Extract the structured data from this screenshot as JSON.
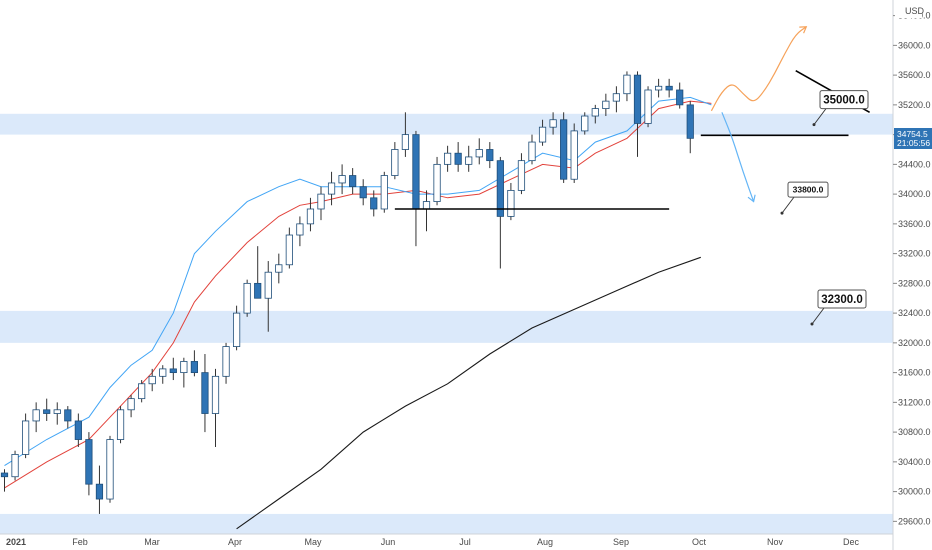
{
  "chart_data": {
    "type": "candlestick",
    "currency": "USD",
    "x_ticks": [
      "2021",
      "Feb",
      "Mar",
      "Apr",
      "May",
      "Jun",
      "Jul",
      "Aug",
      "Sep",
      "Oct",
      "Nov",
      "Dec"
    ],
    "y_ticks": [
      29600,
      30000,
      30400,
      30800,
      31200,
      31600,
      32000,
      32400,
      32800,
      33200,
      33600,
      34000,
      34400,
      34800,
      35200,
      35600,
      36000,
      36400
    ],
    "ylim": [
      29430,
      36610
    ],
    "price_label": {
      "value": "34754.5",
      "countdown": "21:05:56"
    },
    "zones": [
      {
        "from": 34800,
        "to": 35080
      },
      {
        "from": 32000,
        "to": 32430
      },
      {
        "from": 29430,
        "to": 29700
      }
    ],
    "levels": [
      {
        "name": "support-33800",
        "price": 33800,
        "from_week": 37,
        "to_week": 63
      },
      {
        "name": "support-34800",
        "price": 34790,
        "from_week": 66,
        "to_week": 80
      }
    ],
    "trendline": {
      "from": {
        "week": 75,
        "price": 35660
      },
      "to": {
        "week": 82,
        "price": 35100
      }
    },
    "callouts": [
      {
        "name": "callout-35000",
        "label": "35000.0",
        "price": 35270,
        "size": "large"
      },
      {
        "name": "callout-33800",
        "label": "33800.0",
        "price": 34060,
        "size": "small"
      },
      {
        "name": "callout-32300",
        "label": "32300.0",
        "price": 32590,
        "size": "large"
      }
    ],
    "forecast_up": [
      [
        67,
        35120
      ],
      [
        68,
        35380
      ],
      [
        69,
        35500
      ],
      [
        70,
        35350
      ],
      [
        71,
        35220
      ],
      [
        72,
        35380
      ],
      [
        73,
        35620
      ],
      [
        74,
        35900
      ],
      [
        75,
        36150
      ],
      [
        76,
        36250
      ]
    ],
    "forecast_down": [
      [
        68,
        35100
      ],
      [
        69,
        34750
      ],
      [
        70,
        34300
      ],
      [
        71,
        33900
      ]
    ],
    "ema_fast": [
      [
        0,
        30350
      ],
      [
        4,
        30700
      ],
      [
        8,
        31000
      ],
      [
        10,
        31400
      ],
      [
        12,
        31700
      ],
      [
        14,
        31900
      ],
      [
        16,
        32400
      ],
      [
        18,
        33200
      ],
      [
        20,
        33500
      ],
      [
        23,
        33900
      ],
      [
        26,
        34100
      ],
      [
        28,
        34200
      ],
      [
        30,
        34100
      ],
      [
        33,
        34100
      ],
      [
        36,
        34100
      ],
      [
        39,
        34000
      ],
      [
        42,
        34000
      ],
      [
        45,
        34050
      ],
      [
        48,
        34300
      ],
      [
        51,
        34550
      ],
      [
        54,
        34450
      ],
      [
        56,
        34700
      ],
      [
        59,
        34850
      ],
      [
        62,
        35250
      ],
      [
        65,
        35300
      ],
      [
        67,
        35200
      ]
    ],
    "ema_slow": [
      [
        0,
        30050
      ],
      [
        4,
        30400
      ],
      [
        8,
        30700
      ],
      [
        10,
        31000
      ],
      [
        12,
        31300
      ],
      [
        14,
        31600
      ],
      [
        16,
        32000
      ],
      [
        18,
        32550
      ],
      [
        20,
        32900
      ],
      [
        23,
        33350
      ],
      [
        26,
        33700
      ],
      [
        28,
        33850
      ],
      [
        30,
        33900
      ],
      [
        33,
        34000
      ],
      [
        36,
        34000
      ],
      [
        39,
        34050
      ],
      [
        42,
        33950
      ],
      [
        45,
        34000
      ],
      [
        48,
        34200
      ],
      [
        51,
        34400
      ],
      [
        54,
        34350
      ],
      [
        56,
        34550
      ],
      [
        59,
        34750
      ],
      [
        62,
        35150
      ],
      [
        65,
        35250
      ],
      [
        67,
        35220
      ]
    ],
    "sma_long": [
      [
        22,
        29500
      ],
      [
        26,
        29900
      ],
      [
        30,
        30300
      ],
      [
        34,
        30800
      ],
      [
        38,
        31150
      ],
      [
        42,
        31450
      ],
      [
        46,
        31850
      ],
      [
        50,
        32200
      ],
      [
        54,
        32450
      ],
      [
        58,
        32700
      ],
      [
        62,
        32950
      ],
      [
        66,
        33150
      ]
    ],
    "candles": [
      [
        30250,
        30300,
        30000,
        30200
      ],
      [
        30200,
        30550,
        30150,
        30500
      ],
      [
        30500,
        31050,
        30450,
        30950
      ],
      [
        30950,
        31200,
        30800,
        31100
      ],
      [
        31100,
        31250,
        30950,
        31050
      ],
      [
        31050,
        31200,
        30900,
        31100
      ],
      [
        31100,
        31150,
        30850,
        30950
      ],
      [
        30950,
        31050,
        30600,
        30700
      ],
      [
        30700,
        30800,
        29950,
        30100
      ],
      [
        30100,
        30350,
        29700,
        29900
      ],
      [
        29900,
        30750,
        29850,
        30700
      ],
      [
        30700,
        31150,
        30650,
        31100
      ],
      [
        31100,
        31300,
        31000,
        31250
      ],
      [
        31250,
        31500,
        31200,
        31450
      ],
      [
        31450,
        31650,
        31350,
        31550
      ],
      [
        31550,
        31700,
        31450,
        31650
      ],
      [
        31650,
        31800,
        31500,
        31600
      ],
      [
        31600,
        31800,
        31400,
        31750
      ],
      [
        31750,
        31900,
        31550,
        31600
      ],
      [
        31600,
        31850,
        30800,
        31050
      ],
      [
        31050,
        31650,
        30600,
        31550
      ],
      [
        31550,
        32000,
        31450,
        31950
      ],
      [
        31950,
        32500,
        31900,
        32400
      ],
      [
        32400,
        32850,
        32350,
        32800
      ],
      [
        32800,
        33300,
        32650,
        32600
      ],
      [
        32600,
        33100,
        32150,
        32950
      ],
      [
        32950,
        33200,
        32800,
        33050
      ],
      [
        33050,
        33550,
        33000,
        33450
      ],
      [
        33450,
        33700,
        33300,
        33600
      ],
      [
        33600,
        33950,
        33500,
        33800
      ],
      [
        33800,
        34100,
        33650,
        34000
      ],
      [
        34000,
        34300,
        33850,
        34150
      ],
      [
        34150,
        34400,
        34000,
        34250
      ],
      [
        34250,
        34350,
        34000,
        34100
      ],
      [
        34100,
        34200,
        33850,
        33950
      ],
      [
        33950,
        34050,
        33700,
        33800
      ],
      [
        33800,
        34300,
        33750,
        34250
      ],
      [
        34250,
        34700,
        34200,
        34600
      ],
      [
        34600,
        35100,
        34500,
        34800
      ],
      [
        34800,
        34850,
        33300,
        33800
      ],
      [
        33800,
        34050,
        33500,
        33900
      ],
      [
        33900,
        34500,
        33850,
        34400
      ],
      [
        34400,
        34650,
        34300,
        34550
      ],
      [
        34550,
        34700,
        34300,
        34400
      ],
      [
        34400,
        34650,
        34300,
        34500
      ],
      [
        34500,
        34750,
        34400,
        34600
      ],
      [
        34600,
        34700,
        34350,
        34450
      ],
      [
        34450,
        34500,
        33000,
        33700
      ],
      [
        33700,
        34150,
        33650,
        34050
      ],
      [
        34050,
        34550,
        34000,
        34450
      ],
      [
        34450,
        34800,
        34400,
        34700
      ],
      [
        34700,
        35000,
        34650,
        34900
      ],
      [
        34900,
        35100,
        34800,
        35000
      ],
      [
        35000,
        35100,
        34150,
        34200
      ],
      [
        34200,
        34950,
        34150,
        34850
      ],
      [
        34850,
        35100,
        34800,
        35050
      ],
      [
        35050,
        35200,
        34950,
        35150
      ],
      [
        35150,
        35350,
        35050,
        35250
      ],
      [
        35250,
        35450,
        35100,
        35350
      ],
      [
        35350,
        35650,
        35250,
        35600
      ],
      [
        35600,
        35650,
        34500,
        34950
      ],
      [
        34950,
        35450,
        34900,
        35400
      ],
      [
        35400,
        35550,
        35300,
        35450
      ],
      [
        35450,
        35550,
        35300,
        35400
      ],
      [
        35400,
        35500,
        35150,
        35200
      ],
      [
        35200,
        35250,
        34550,
        34750
      ]
    ]
  }
}
